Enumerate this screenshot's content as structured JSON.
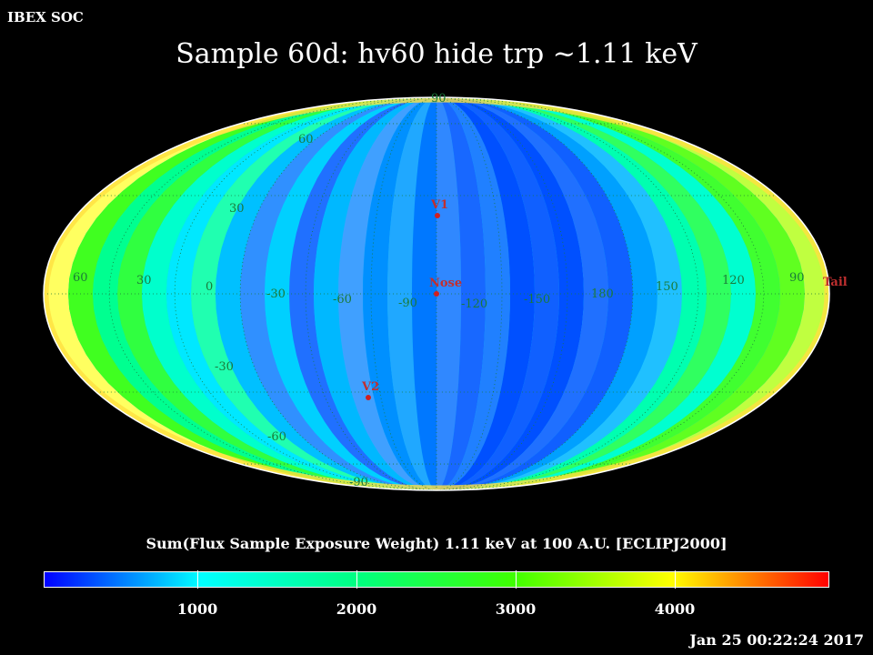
{
  "header": {
    "org": "IBEX SOC",
    "title": "Sample 60d: hv60 hide trp ~1.11 keV"
  },
  "map": {
    "projection": "Mollweide (ecliptic)",
    "latitude_labels": [
      "90",
      "60",
      "30",
      "-30",
      "-60",
      "-90"
    ],
    "longitude_labels": [
      "60",
      "30",
      "0",
      "-30",
      "-60",
      "-90",
      "-120",
      "-150",
      "180",
      "150",
      "120",
      "90"
    ],
    "markers": [
      {
        "name": "V1",
        "color": "#d02020"
      },
      {
        "name": "Nose",
        "color": "#d02020"
      },
      {
        "name": "V2",
        "color": "#d02020"
      },
      {
        "name": "Tail",
        "color": "#d02020"
      }
    ],
    "grid_color": "#1a7a3a"
  },
  "colorbar": {
    "title": "Sum(Flux Sample Exposure Weight)  1.11 keV at 100 A.U. [ECLIPJ2000]",
    "ticks": [
      "1000",
      "2000",
      "3000",
      "4000"
    ],
    "colors": [
      "#0000ff",
      "#00ffff",
      "#00ff80",
      "#40ff00",
      "#ffff00",
      "#ff0000"
    ]
  },
  "footer": {
    "timestamp": "Jan 25 00:22:24 2017"
  }
}
